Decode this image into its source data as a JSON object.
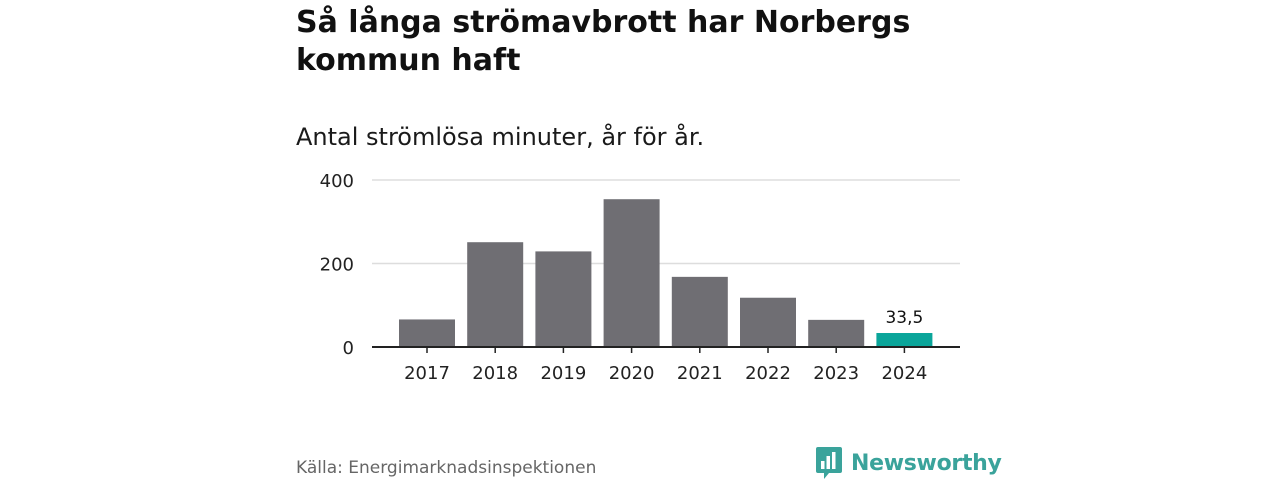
{
  "header": {
    "title": "Så långa strömavbrott har Norbergs kommun haft",
    "subtitle": "Antal strömlösa minuter, år för år."
  },
  "footer": {
    "source": "Källa: Energimarknadsinspektionen",
    "brand": "Newsworthy",
    "brand_icon": "bar-chart-logo-icon"
  },
  "colors": {
    "bar": "#6f6e73",
    "highlight": "#0aa59a",
    "grid": "#dddddd",
    "axis": "#222222",
    "brand": "#3aa39b"
  },
  "chart_data": {
    "type": "bar",
    "title": "Så långa strömavbrott har Norbergs kommun haft",
    "subtitle": "Antal strömlösa minuter, år för år.",
    "categories": [
      "2017",
      "2018",
      "2019",
      "2020",
      "2021",
      "2022",
      "2023",
      "2024"
    ],
    "values": [
      66,
      251,
      229,
      354,
      168,
      118,
      65,
      33.5
    ],
    "highlight_index": 7,
    "data_labels": [
      {
        "index": 7,
        "text": "33,5"
      }
    ],
    "ylim": [
      0,
      400
    ],
    "yticks": [
      0,
      200,
      400
    ],
    "xlabel": "",
    "ylabel": "",
    "grid": true,
    "legend": "none"
  }
}
